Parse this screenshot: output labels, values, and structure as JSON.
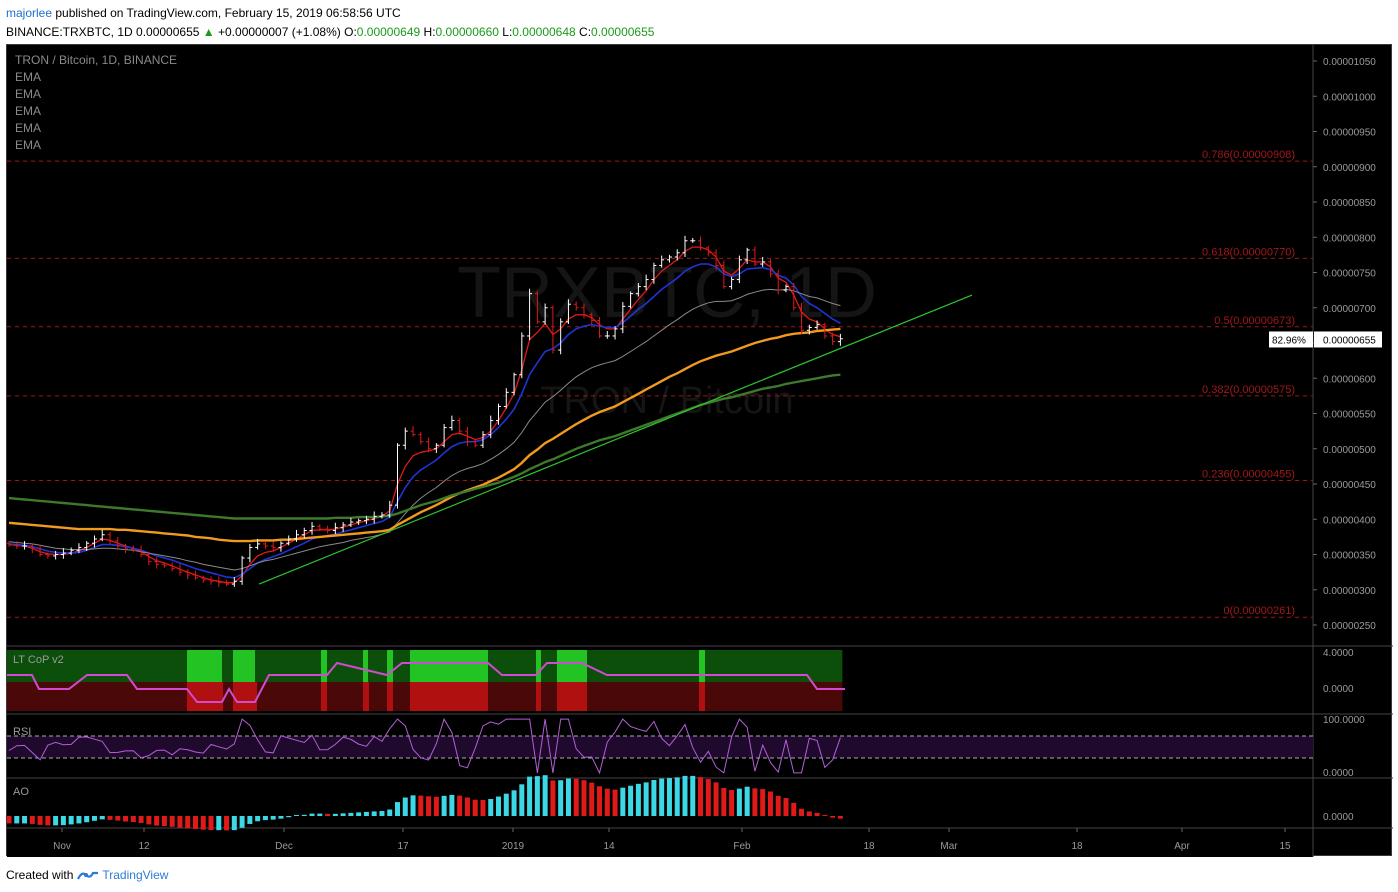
{
  "header": {
    "author": "majorlee",
    "published": " published on TradingView.com, February 15, 2019 06:58:56 UTC",
    "symbol_line": "BINANCE:TRXBTC, 1D  0.00000655",
    "change": "+0.00000007 (+1.08%)",
    "o_label": "O:",
    "o_value": "0.00000649",
    "h_label": "H:",
    "h_value": "0.00000660",
    "l_label": "L:",
    "l_value": "0.00000648",
    "c_label": "C:",
    "c_value": "0.00000655"
  },
  "footer": {
    "created": "Created with",
    "brand": "TradingView"
  },
  "legend": {
    "title": "TRON / Bitcoin, 1D, BINANCE",
    "indicators": [
      "EMA",
      "EMA",
      "EMA",
      "EMA",
      "EMA"
    ]
  },
  "watermark": {
    "big": "TRXBTC, 1D",
    "small": "TRON / Bitcoin"
  },
  "colors": {
    "background": "#000000",
    "candle_up": "#ffffff",
    "candle_down": "#e01919",
    "ema_red": "#e01919",
    "ema_blue": "#1f34d6",
    "ema_gray": "#8a8a8a",
    "ema_orange": "#f29a1e",
    "ema_green": "#3d7a2b",
    "trendline": "#2ec22e",
    "fib": "#a01818",
    "ao_up": "#3dd8e6",
    "ao_down": "#e01919",
    "rsi": "#b25fd6"
  },
  "chart_data": {
    "type": "candlestick",
    "title": "TRON / Bitcoin, 1D, BINANCE",
    "symbol": "TRXBTC",
    "y_axis_ticks": [
      "0.00001050",
      "0.00001000",
      "0.00000950",
      "0.00000900",
      "0.00000850",
      "0.00000800",
      "0.00000750",
      "0.00000700",
      "0.00000650",
      "0.00000600",
      "0.00000550",
      "0.00000500",
      "0.00000450",
      "0.00000400",
      "0.00000350",
      "0.00000300",
      "0.00000250"
    ],
    "ylim": [
      2.43e-06,
      1.075e-05
    ],
    "x_axis_ticks": [
      "Nov",
      "12",
      "Dec",
      "17",
      "2019",
      "14",
      "Feb",
      "18",
      "Mar",
      "18",
      "Apr",
      "15"
    ],
    "last_price": "0.00000655",
    "last_price_pct": "82.96%",
    "fib_levels": [
      {
        "label": "0.786(0.00000908)",
        "value": 9.08e-06
      },
      {
        "label": "0.618(0.00000770)",
        "value": 7.7e-06
      },
      {
        "label": "0.5(0.00000673)",
        "value": 6.73e-06
      },
      {
        "label": "0.382(0.00000575)",
        "value": 5.75e-06
      },
      {
        "label": "0.236(0.00000455)",
        "value": 4.55e-06
      },
      {
        "label": "0(0.00000261)",
        "value": 2.61e-06
      }
    ],
    "closes": [
      364,
      362,
      362,
      358,
      350,
      348,
      350,
      352,
      356,
      360,
      366,
      372,
      378,
      369,
      362,
      358,
      356,
      350,
      340,
      336,
      334,
      330,
      325,
      321,
      317,
      314,
      312,
      310,
      308,
      312,
      345,
      360,
      365,
      362,
      360,
      366,
      372,
      378,
      384,
      390,
      386,
      384,
      388,
      392,
      396,
      398,
      400,
      404,
      406,
      420,
      505,
      525,
      520,
      510,
      500,
      505,
      530,
      540,
      525,
      510,
      505,
      520,
      540,
      560,
      580,
      605,
      660,
      720,
      680,
      700,
      640,
      680,
      705,
      700,
      690,
      682,
      660,
      660,
      670,
      702,
      720,
      730,
      740,
      760,
      768,
      772,
      778,
      795,
      795,
      785,
      778,
      760,
      730,
      740,
      768,
      782,
      762,
      765,
      748,
      725,
      730,
      700,
      668,
      672,
      676,
      660,
      652,
      656
    ],
    "candle_order": "chronological daily closes (x 1e-8 BTC), 108 days, Oct 24 2018 to Feb 15 2019",
    "ema_series": [
      {
        "color": "red",
        "values": [
          364,
          363,
          362,
          359,
          354,
          351,
          350,
          350,
          352,
          355,
          360,
          366,
          372,
          370,
          366,
          362,
          359,
          354,
          347,
          341,
          338,
          334,
          329,
          325,
          321,
          317,
          314,
          312,
          310,
          310,
          320,
          336,
          348,
          353,
          355,
          360,
          366,
          372,
          378,
          384,
          385,
          385,
          386,
          389,
          392,
          395,
          398,
          401,
          404,
          412,
          450,
          475,
          490,
          495,
          497,
          500,
          510,
          520,
          522,
          518,
          513,
          516,
          525,
          540,
          558,
          578,
          612,
          655,
          665,
          678,
          662,
          670,
          684,
          690,
          690,
          686,
          676,
          670,
          670,
          684,
          698,
          712,
          724,
          740,
          752,
          760,
          768,
          780,
          786,
          786,
          782,
          772,
          752,
          746,
          756,
          768,
          765,
          765,
          758,
          742,
          736,
          718,
          694,
          684,
          680,
          670,
          662,
          659
        ]
      },
      {
        "color": "blue",
        "values": [
          365,
          364,
          363,
          361,
          358,
          355,
          353,
          352,
          352,
          353,
          356,
          360,
          364,
          364,
          363,
          361,
          359,
          356,
          352,
          348,
          345,
          342,
          338,
          334,
          330,
          327,
          324,
          321,
          318,
          317,
          322,
          330,
          338,
          343,
          347,
          351,
          356,
          361,
          366,
          372,
          375,
          377,
          379,
          382,
          385,
          388,
          391,
          394,
          397,
          403,
          425,
          445,
          460,
          470,
          477,
          484,
          494,
          503,
          508,
          510,
          510,
          513,
          520,
          530,
          542,
          556,
          578,
          605,
          622,
          638,
          642,
          650,
          662,
          670,
          674,
          676,
          674,
          672,
          672,
          679,
          688,
          698,
          706,
          716,
          726,
          734,
          742,
          752,
          758,
          762,
          762,
          758,
          748,
          744,
          748,
          755,
          756,
          757,
          754,
          746,
          742,
          732,
          716,
          706,
          700,
          692,
          684,
          678
        ]
      },
      {
        "color": "gray",
        "values": [
          368,
          367,
          366,
          365,
          363,
          361,
          359,
          358,
          357,
          357,
          357,
          358,
          359,
          359,
          358,
          357,
          356,
          354,
          352,
          350,
          348,
          346,
          344,
          341,
          339,
          336,
          334,
          332,
          330,
          328,
          330,
          334,
          338,
          341,
          343,
          346,
          349,
          352,
          355,
          358,
          361,
          363,
          365,
          367,
          370,
          372,
          374,
          376,
          379,
          382,
          395,
          408,
          420,
          430,
          438,
          445,
          454,
          462,
          468,
          472,
          475,
          479,
          485,
          492,
          500,
          509,
          523,
          540,
          553,
          566,
          574,
          583,
          593,
          602,
          609,
          615,
          619,
          622,
          625,
          631,
          638,
          645,
          652,
          660,
          668,
          676,
          683,
          691,
          698,
          703,
          707,
          709,
          709,
          710,
          714,
          719,
          722,
          725,
          726,
          725,
          726,
          724,
          720,
          716,
          714,
          710,
          706,
          703
        ]
      },
      {
        "color": "orange",
        "values": [
          395,
          394,
          393,
          392,
          391,
          390,
          389,
          388,
          387,
          386,
          386,
          386,
          386,
          386,
          385,
          385,
          384,
          383,
          382,
          381,
          380,
          379,
          378,
          377,
          375,
          374,
          373,
          371,
          370,
          369,
          369,
          369,
          370,
          370,
          370,
          371,
          371,
          372,
          373,
          374,
          375,
          376,
          377,
          378,
          379,
          380,
          381,
          382,
          383,
          385,
          392,
          398,
          404,
          410,
          415,
          420,
          426,
          432,
          437,
          441,
          445,
          449,
          454,
          459,
          465,
          471,
          480,
          491,
          499,
          508,
          514,
          521,
          528,
          535,
          541,
          547,
          552,
          556,
          560,
          566,
          572,
          578,
          584,
          590,
          596,
          602,
          607,
          613,
          619,
          624,
          628,
          632,
          635,
          638,
          642,
          646,
          650,
          653,
          656,
          658,
          661,
          663,
          664,
          665,
          667,
          668,
          669,
          670
        ]
      },
      {
        "color": "green",
        "values": [
          430,
          429,
          428,
          427,
          426,
          425,
          424,
          423,
          422,
          421,
          420,
          419,
          418,
          417,
          416,
          415,
          414,
          413,
          412,
          411,
          410,
          409,
          408,
          407,
          406,
          405,
          404,
          403,
          402,
          401,
          401,
          401,
          401,
          401,
          401,
          401,
          401,
          401,
          401,
          401,
          401,
          401,
          402,
          402,
          402,
          403,
          403,
          403,
          404,
          405,
          408,
          412,
          416,
          420,
          423,
          426,
          430,
          434,
          437,
          440,
          443,
          446,
          449,
          452,
          456,
          460,
          465,
          471,
          476,
          481,
          485,
          490,
          495,
          500,
          504,
          508,
          512,
          515,
          518,
          522,
          526,
          530,
          534,
          538,
          542,
          546,
          550,
          554,
          558,
          562,
          565,
          568,
          571,
          573,
          576,
          579,
          582,
          585,
          587,
          589,
          592,
          594,
          596,
          598,
          600,
          602,
          604,
          605
        ]
      }
    ],
    "trendline": {
      "from": [
        "Dec 1 2018",
        3.08e-06
      ],
      "to": [
        "Feb 23 2019",
        7.18e-06
      ]
    },
    "sub_panels": [
      {
        "name": "LT CoP v2",
        "axis_labels": [
          "4.0000",
          "0.0000"
        ]
      },
      {
        "name": "RSI",
        "axis_labels": [
          "100.0000",
          "0.0000"
        ]
      },
      {
        "name": "AO",
        "axis_labels": [
          "0.0000"
        ]
      }
    ]
  }
}
